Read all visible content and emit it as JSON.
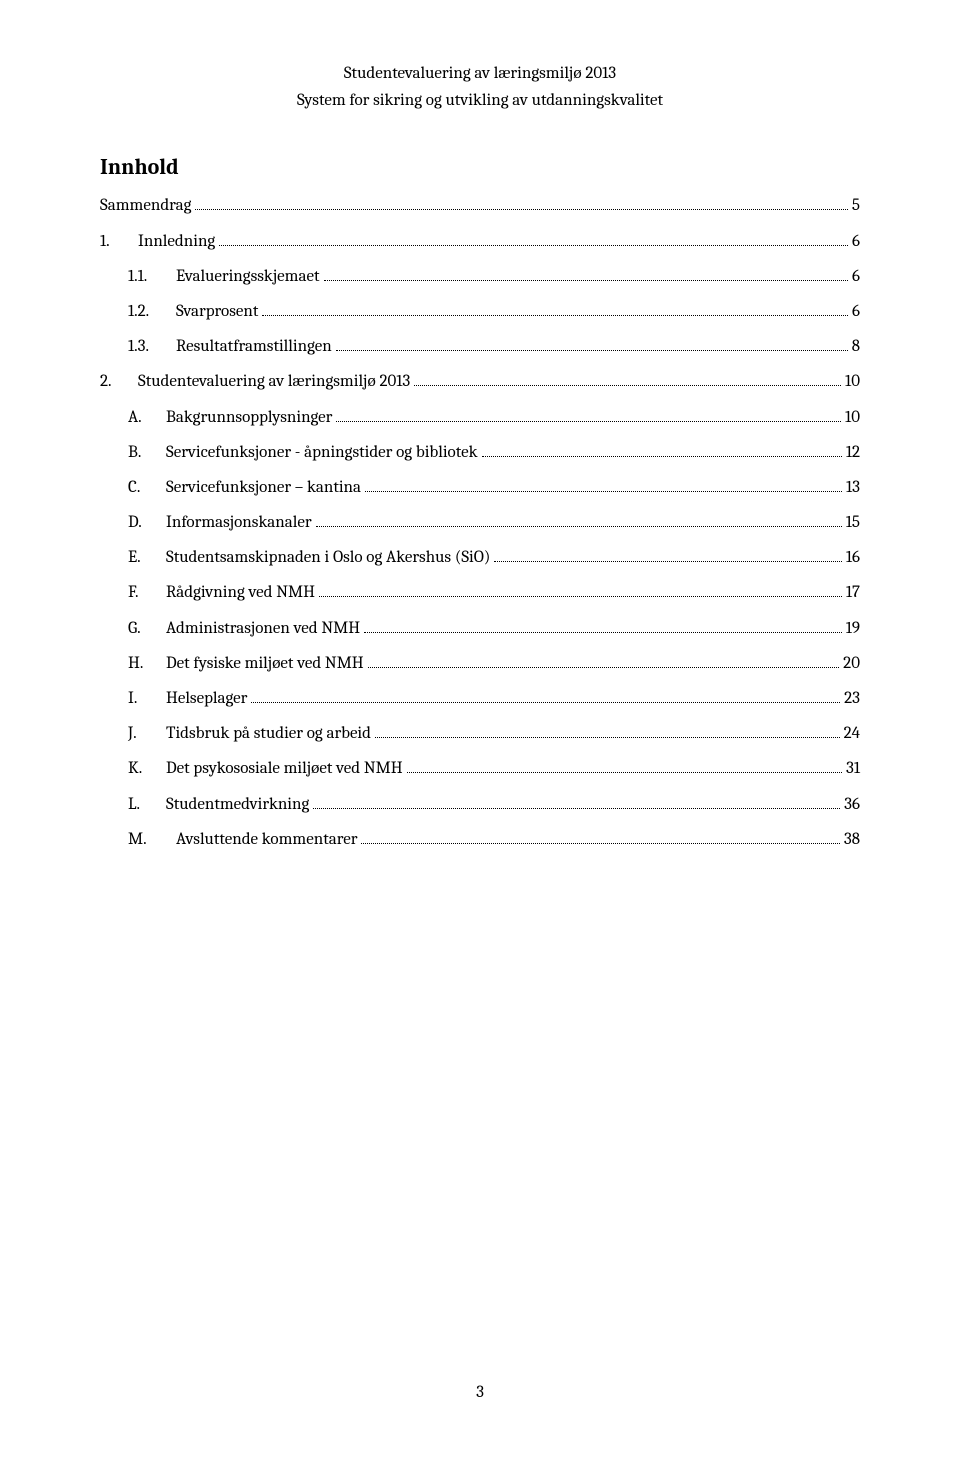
{
  "header": {
    "line1": "Studentevaluering av læringsmiljø 2013",
    "line2": "System for sikring og utvikling av utdanningskvalitet"
  },
  "toc": {
    "title": "Innhold",
    "entries": [
      {
        "marker": "",
        "label": "Sammendrag",
        "page": "5",
        "indent": 0,
        "markerClass": ""
      },
      {
        "marker": "1.",
        "label": "Innledning",
        "page": "6",
        "indent": 0,
        "markerClass": "marker"
      },
      {
        "marker": "1.1.",
        "label": "Evalueringsskjemaet",
        "page": "6",
        "indent": 1,
        "markerClass": "marker-wide"
      },
      {
        "marker": "1.2.",
        "label": "Svarprosent",
        "page": "6",
        "indent": 1,
        "markerClass": "marker-wide"
      },
      {
        "marker": "1.3.",
        "label": "Resultatframstillingen",
        "page": "8",
        "indent": 1,
        "markerClass": "marker-wide"
      },
      {
        "marker": "2.",
        "label": "Studentevaluering av læringsmiljø 2013",
        "page": "10",
        "indent": 0,
        "markerClass": "marker"
      },
      {
        "marker": "A.",
        "label": "Bakgrunnsopplysninger",
        "page": "10",
        "indent": 2,
        "markerClass": "marker"
      },
      {
        "marker": "B.",
        "label": "Servicefunksjoner - åpningstider og bibliotek",
        "page": "12",
        "indent": 2,
        "markerClass": "marker"
      },
      {
        "marker": "C.",
        "label": "Servicefunksjoner – kantina",
        "page": "13",
        "indent": 2,
        "markerClass": "marker"
      },
      {
        "marker": "D.",
        "label": "Informasjonskanaler",
        "page": "15",
        "indent": 2,
        "markerClass": "marker"
      },
      {
        "marker": "E.",
        "label": "Studentsamskipnaden i Oslo og Akershus (SiO)",
        "page": "16",
        "indent": 2,
        "markerClass": "marker"
      },
      {
        "marker": "F.",
        "label": "Rådgivning ved NMH",
        "page": "17",
        "indent": 2,
        "markerClass": "marker"
      },
      {
        "marker": "G.",
        "label": "Administrasjonen ved NMH",
        "page": "19",
        "indent": 2,
        "markerClass": "marker"
      },
      {
        "marker": "H.",
        "label": "Det fysiske miljøet ved NMH",
        "page": "20",
        "indent": 2,
        "markerClass": "marker"
      },
      {
        "marker": "I.",
        "label": "Helseplager",
        "page": "23",
        "indent": 2,
        "markerClass": "marker"
      },
      {
        "marker": "J.",
        "label": "Tidsbruk på studier og arbeid",
        "page": "24",
        "indent": 2,
        "markerClass": "marker"
      },
      {
        "marker": "K.",
        "label": "Det psykososiale miljøet ved NMH",
        "page": "31",
        "indent": 2,
        "markerClass": "marker"
      },
      {
        "marker": "L.",
        "label": "Studentmedvirkning",
        "page": "36",
        "indent": 2,
        "markerClass": "marker"
      },
      {
        "marker": "M.",
        "label": "Avsluttende kommentarer",
        "page": "38",
        "indent": 2,
        "markerClass": "marker-wide"
      }
    ]
  },
  "pageNumber": "3"
}
